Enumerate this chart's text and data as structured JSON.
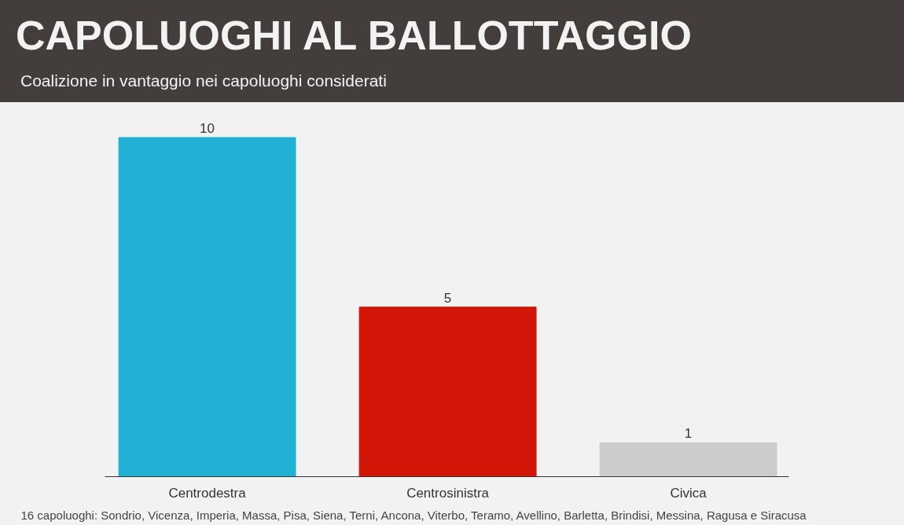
{
  "chart_data": {
    "type": "bar",
    "title": "CAPOLUOGHI AL BALLOTTAGGIO",
    "subtitle": "Coalizione in vantaggio nei capoluoghi considerati",
    "categories": [
      "Centrodestra",
      "Centrosinistra",
      "Civica"
    ],
    "values": [
      10,
      5,
      1
    ],
    "colors": [
      "#21b1d4",
      "#d11507",
      "#cccccc"
    ],
    "data_labels": true,
    "grid": false,
    "tick_labels": "x",
    "annotations": [
      "16 capoluoghi: Sondrio, Vicenza, Imperia, Massa, Pisa, Siena, Terni, Ancona, Viterbo, Teramo, Avellino, Barletta, Brindisi, Messina, Ragusa e Siracusa"
    ]
  }
}
